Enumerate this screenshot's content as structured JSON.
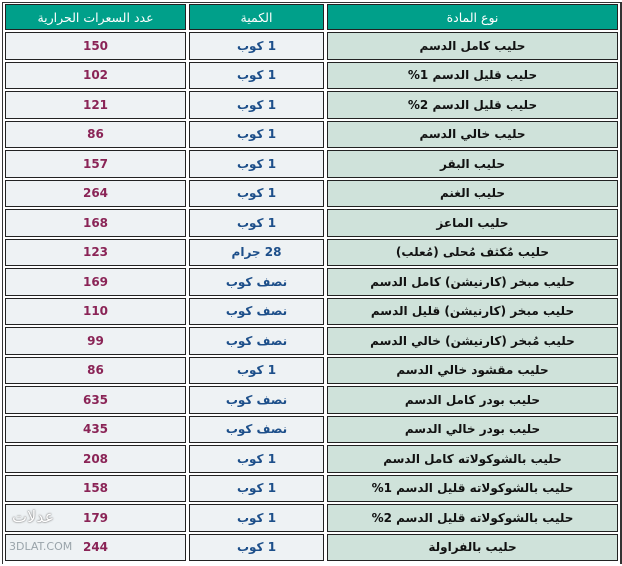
{
  "table": {
    "headers": {
      "name": "نوع المادة",
      "quantity": "الكمية",
      "calories": "عدد السعرات الحرارية"
    },
    "rows": [
      {
        "name": "حليب كامل الدسم",
        "quantity": "1 كوب",
        "calories": "150"
      },
      {
        "name": "حليب قليل الدسم 1%",
        "quantity": "1 كوب",
        "calories": "102"
      },
      {
        "name": "حليب قليل الدسم 2%",
        "quantity": "1 كوب",
        "calories": "121"
      },
      {
        "name": "حليب خالي الدسم",
        "quantity": "1 كوب",
        "calories": "86"
      },
      {
        "name": "حليب البقر",
        "quantity": "1 كوب",
        "calories": "157"
      },
      {
        "name": "حليب الغنم",
        "quantity": "1 كوب",
        "calories": "264"
      },
      {
        "name": "حليب الماعز",
        "quantity": "1 كوب",
        "calories": "168"
      },
      {
        "name": "حليب مُكثف مُحلى (مُعلب)",
        "quantity": "28 جرام",
        "calories": "123"
      },
      {
        "name": "حليب مبخر (كارنيشن) كامل الدسم",
        "quantity": "نصف كوب",
        "calories": "169"
      },
      {
        "name": "حليب مبخر (كارنيشن) قليل الدسم",
        "quantity": "نصف كوب",
        "calories": "110"
      },
      {
        "name": "حليب مُبخر (كارنيشن) خالي الدسم",
        "quantity": "نصف كوب",
        "calories": "99"
      },
      {
        "name": "حليب مقشود خالي الدسم",
        "quantity": "1 كوب",
        "calories": "86"
      },
      {
        "name": "حليب بودر كامل الدسم",
        "quantity": "نصف كوب",
        "calories": "635"
      },
      {
        "name": "حليب بودر خالي الدسم",
        "quantity": "نصف كوب",
        "calories": "435"
      },
      {
        "name": "حليب بالشوكولاته كامل الدسم",
        "quantity": "1 كوب",
        "calories": "208"
      },
      {
        "name": "حليب بالشوكولاته قليل الدسم 1%",
        "quantity": "1 كوب",
        "calories": "158"
      },
      {
        "name": "حليب بالشوكولاته قليل الدسم 2%",
        "quantity": "1 كوب",
        "calories": "179"
      },
      {
        "name": "حليب بالفراولة",
        "quantity": "1 كوب",
        "calories": "244"
      }
    ]
  },
  "watermark": {
    "logo": "عدلات",
    "site": "3DLAT.COM"
  },
  "colors": {
    "header": "#00a08a",
    "name_cell": "#cfe2da",
    "value_cell": "#eef2f4",
    "calories_text": "#8a2456",
    "quantity_text": "#1d4f8a"
  }
}
